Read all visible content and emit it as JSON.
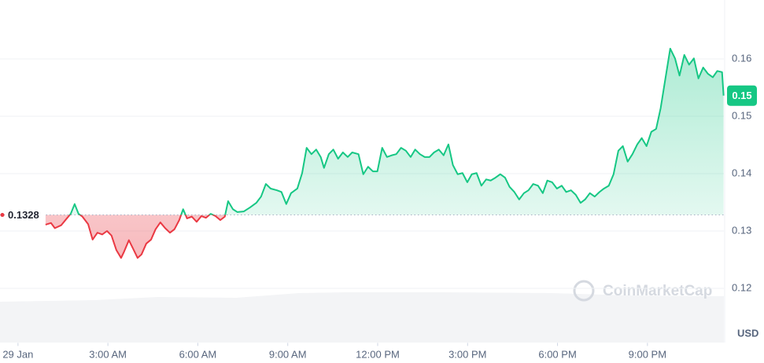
{
  "chart_data": {
    "type": "line",
    "currency": "USD",
    "watermark": "CoinMarketCap",
    "baseline": 0.1328,
    "price_label": "0.15",
    "up_color": "#16c784",
    "down_color": "#ea3943",
    "xlim": [
      -0.6,
      23.55
    ],
    "ylim": [
      0.1105,
      0.17
    ],
    "xticks": [
      {
        "value": 0,
        "label": "29 Jan"
      },
      {
        "value": 3,
        "label": "3:00 AM"
      },
      {
        "value": 6,
        "label": "6:00 AM"
      },
      {
        "value": 9,
        "label": "9:00 AM"
      },
      {
        "value": 12,
        "label": "12:00 PM"
      },
      {
        "value": 15,
        "label": "3:00 PM"
      },
      {
        "value": 18,
        "label": "6:00 PM"
      },
      {
        "value": 21,
        "label": "9:00 PM"
      }
    ],
    "yticks": [
      0.12,
      0.13,
      0.14,
      0.15,
      0.16
    ],
    "grid": true,
    "x": [
      0.92,
      1.1,
      1.23,
      1.44,
      1.63,
      1.76,
      1.89,
      2.02,
      2.15,
      2.34,
      2.49,
      2.65,
      2.81,
      2.97,
      3.12,
      3.28,
      3.44,
      3.54,
      3.7,
      3.86,
      3.99,
      4.12,
      4.28,
      4.44,
      4.59,
      4.75,
      4.91,
      5.07,
      5.22,
      5.38,
      5.51,
      5.64,
      5.8,
      5.96,
      6.12,
      6.27,
      6.43,
      6.59,
      6.75,
      6.9,
      7.01,
      7.17,
      7.32,
      7.53,
      7.74,
      7.95,
      8.11,
      8.27,
      8.43,
      8.64,
      8.79,
      8.95,
      9.11,
      9.32,
      9.48,
      9.63,
      9.79,
      9.95,
      10.1,
      10.21,
      10.37,
      10.52,
      10.68,
      10.84,
      11.0,
      11.15,
      11.36,
      11.52,
      11.68,
      11.84,
      11.99,
      12.15,
      12.31,
      12.47,
      12.62,
      12.78,
      12.94,
      13.1,
      13.25,
      13.41,
      13.57,
      13.73,
      13.88,
      14.04,
      14.2,
      14.36,
      14.51,
      14.67,
      14.83,
      14.99,
      15.14,
      15.3,
      15.46,
      15.62,
      15.77,
      15.93,
      16.09,
      16.25,
      16.4,
      16.56,
      16.72,
      16.88,
      17.03,
      17.19,
      17.35,
      17.51,
      17.66,
      17.82,
      17.98,
      18.14,
      18.29,
      18.45,
      18.61,
      18.77,
      18.92,
      19.08,
      19.24,
      19.4,
      19.55,
      19.71,
      19.87,
      20.03,
      20.18,
      20.34,
      20.5,
      20.66,
      20.81,
      20.97,
      21.13,
      21.29,
      21.44,
      21.6,
      21.76,
      21.92,
      22.07,
      22.23,
      22.39,
      22.55,
      22.7,
      22.86,
      23.02,
      23.18,
      23.33,
      23.49,
      23.54
    ],
    "values": [
      0.1311,
      0.1314,
      0.1305,
      0.131,
      0.1322,
      0.133,
      0.1347,
      0.133,
      0.1325,
      0.1312,
      0.1285,
      0.1297,
      0.1294,
      0.13,
      0.1292,
      0.1267,
      0.1253,
      0.1264,
      0.1284,
      0.1267,
      0.1253,
      0.1259,
      0.1278,
      0.1285,
      0.1303,
      0.1315,
      0.1305,
      0.1297,
      0.1303,
      0.1319,
      0.1338,
      0.1322,
      0.1325,
      0.1316,
      0.1326,
      0.1323,
      0.133,
      0.1326,
      0.1319,
      0.1325,
      0.1352,
      0.1338,
      0.1333,
      0.1334,
      0.1341,
      0.1349,
      0.136,
      0.1382,
      0.1374,
      0.1371,
      0.1368,
      0.1347,
      0.1366,
      0.1374,
      0.1401,
      0.1445,
      0.1434,
      0.1442,
      0.1429,
      0.141,
      0.1434,
      0.1442,
      0.1426,
      0.1437,
      0.1429,
      0.1437,
      0.1434,
      0.1399,
      0.1412,
      0.1404,
      0.1404,
      0.1445,
      0.1429,
      0.1432,
      0.1434,
      0.1445,
      0.144,
      0.1429,
      0.1442,
      0.1434,
      0.1429,
      0.1429,
      0.1437,
      0.1442,
      0.1432,
      0.1451,
      0.1415,
      0.1399,
      0.1401,
      0.1385,
      0.1399,
      0.1401,
      0.1379,
      0.139,
      0.1388,
      0.1393,
      0.1399,
      0.1393,
      0.1377,
      0.1368,
      0.1355,
      0.1366,
      0.1371,
      0.1382,
      0.1379,
      0.1366,
      0.1388,
      0.1385,
      0.1374,
      0.1379,
      0.1368,
      0.1371,
      0.1363,
      0.1349,
      0.1355,
      0.1366,
      0.136,
      0.1368,
      0.1374,
      0.1379,
      0.1399,
      0.144,
      0.1448,
      0.1421,
      0.1434,
      0.1451,
      0.1462,
      0.1448,
      0.1473,
      0.1478,
      0.1514,
      0.1566,
      0.1618,
      0.1601,
      0.1571,
      0.1607,
      0.159,
      0.1601,
      0.1566,
      0.1585,
      0.1574,
      0.1568,
      0.1579,
      0.1577,
      0.1536
    ]
  }
}
